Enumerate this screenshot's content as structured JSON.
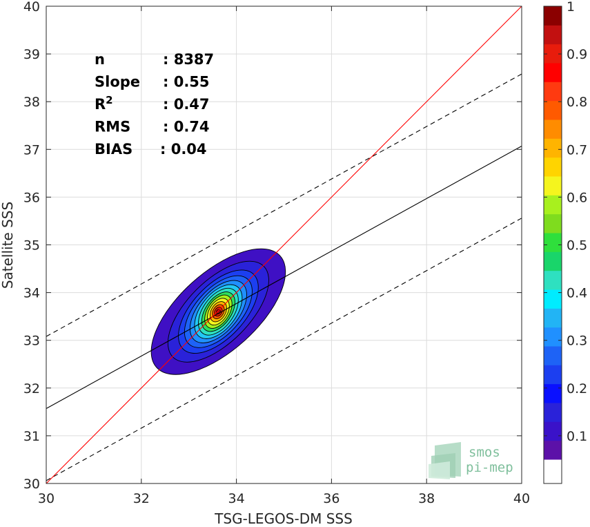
{
  "chart_data": {
    "type": "heatmap",
    "subtype": "density contour scatter",
    "xlabel": "TSG-LEGOS-DM SSS",
    "ylabel": "Satellite SSS",
    "xlim": [
      30,
      40
    ],
    "ylim": [
      30,
      40
    ],
    "xticks": [
      "30",
      "32",
      "34",
      "36",
      "38",
      "40"
    ],
    "yticks": [
      "30",
      "31",
      "32",
      "33",
      "34",
      "35",
      "36",
      "37",
      "38",
      "39",
      "40"
    ],
    "grid": true,
    "stats": [
      {
        "label": "n",
        "value": ": 8387"
      },
      {
        "label": "Slope",
        "value": ": 0.55"
      },
      {
        "label": "R",
        "sup": "2",
        "value": ": 0.47"
      },
      {
        "label": "RMS",
        "value": ": 0.74"
      },
      {
        "label": "BIAS",
        "value": ": 0.04"
      }
    ],
    "lines": {
      "identity": {
        "color": "#ff0000",
        "points": [
          [
            30,
            30
          ],
          [
            40,
            40
          ]
        ]
      },
      "regression": {
        "color": "#000000",
        "dash": "solid",
        "points": [
          [
            30,
            31.57
          ],
          [
            40,
            37.07
          ]
        ]
      },
      "upper_bound": {
        "color": "#000000",
        "dash": "dashed",
        "points": [
          [
            30,
            33.08
          ],
          [
            40,
            38.58
          ]
        ]
      },
      "lower_bound": {
        "color": "#000000",
        "dash": "dashed",
        "points": [
          [
            30,
            30.06
          ],
          [
            40,
            35.56
          ]
        ]
      }
    },
    "density_center": [
      33.62,
      33.6
    ],
    "levels": [
      {
        "level": 0.05,
        "color": "#3f10c4",
        "rx": 1.75,
        "ry": 0.82,
        "angle": 42
      },
      {
        "level": 0.1,
        "color": "#2a22d9",
        "rx": 1.35,
        "ry": 0.65,
        "angle": 45
      },
      {
        "level": 0.15,
        "color": "#1c3ff0",
        "rx": 1.08,
        "ry": 0.55,
        "angle": 47
      },
      {
        "level": 0.2,
        "color": "#1e63f6",
        "rx": 0.92,
        "ry": 0.48,
        "angle": 48
      },
      {
        "level": 0.25,
        "color": "#2090ff",
        "rx": 0.78,
        "ry": 0.42,
        "angle": 50
      },
      {
        "level": 0.3,
        "color": "#22c8f5",
        "rx": 0.66,
        "ry": 0.37,
        "angle": 52
      },
      {
        "level": 0.35,
        "color": "#2ee0c0",
        "rx": 0.56,
        "ry": 0.32,
        "angle": 54
      },
      {
        "level": 0.4,
        "color": "#2fdf5c",
        "rx": 0.47,
        "ry": 0.27,
        "angle": 55
      },
      {
        "level": 0.5,
        "color": "#a8f01e",
        "rx": 0.39,
        "ry": 0.23,
        "angle": 57
      },
      {
        "level": 0.6,
        "color": "#f5f51e",
        "rx": 0.31,
        "ry": 0.19,
        "angle": 58
      },
      {
        "level": 0.7,
        "color": "#ffb400",
        "rx": 0.23,
        "ry": 0.15,
        "angle": 60
      },
      {
        "level": 0.8,
        "color": "#ff5a00",
        "rx": 0.16,
        "ry": 0.11,
        "angle": 60
      },
      {
        "level": 0.9,
        "color": "#e81c0c",
        "rx": 0.1,
        "ry": 0.075,
        "angle": 60
      },
      {
        "level": 1.0,
        "color": "#a50d0d",
        "rx": 0.05,
        "ry": 0.04,
        "angle": 60
      }
    ],
    "colorbar": {
      "ticks": [
        "0.1",
        "0.2",
        "0.3",
        "0.4",
        "0.5",
        "0.6",
        "0.7",
        "0.8",
        "0.9",
        "1"
      ],
      "range": [
        0,
        1
      ],
      "bands": [
        "#ffffff",
        "#5c11a8",
        "#3a12c9",
        "#2a22d9",
        "#0a10ff",
        "#1c3ff0",
        "#1e63f6",
        "#2090ff",
        "#22b4f5",
        "#00ecff",
        "#2ee0c0",
        "#19d56a",
        "#2fdf3c",
        "#7fdc1e",
        "#a8f01e",
        "#f5f51e",
        "#ffd400",
        "#ffb400",
        "#ff8c00",
        "#ff5a00",
        "#ff3a10",
        "#ff0000",
        "#e81c0c",
        "#c21010",
        "#8b0000"
      ]
    }
  },
  "logo": {
    "line1": "smos",
    "line2": "pi-mep",
    "color": "#7fbf9c"
  }
}
